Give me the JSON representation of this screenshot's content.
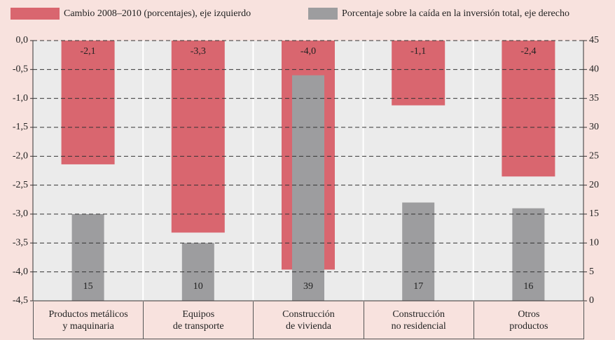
{
  "chart_data": {
    "type": "bar",
    "categories": [
      "Productos metálicos\ny maquinaria",
      "Equipos\nde transporte",
      "Construcción\nde vivienda",
      "Construcción\nno residencial",
      "Otros\nproductos"
    ],
    "series": [
      {
        "name": "Cambio 2008–2010 (porcentajes), eje izquierdo",
        "color": "#d9666f",
        "values": [
          -2.14,
          -3.32,
          -3.96,
          -1.12,
          -2.35
        ],
        "value_labels": [
          "-2,1",
          "-3,3",
          "-4,0",
          "-1,1",
          "-2,4"
        ]
      },
      {
        "name": "Porcentaje sobre la caída en la inversión total, eje derecho",
        "color": "#9d9d9f",
        "axis": "y2",
        "values": [
          15,
          10,
          39,
          17,
          16
        ]
      }
    ],
    "ylim": [
      -4.5,
      0
    ],
    "yticks": [
      {
        "value": 0,
        "label": "0,0"
      },
      {
        "value": -0.5,
        "label": "-0,5"
      },
      {
        "value": -1,
        "label": "-1,0"
      },
      {
        "value": -1.5,
        "label": "-1,5"
      },
      {
        "value": -2,
        "label": "-2,0"
      },
      {
        "value": -2.5,
        "label": "-2,5"
      },
      {
        "value": -3,
        "label": "-3,0"
      },
      {
        "value": -3.5,
        "label": "-3,5"
      },
      {
        "value": -4,
        "label": "-4,0"
      },
      {
        "value": -4.5,
        "label": "-4,5"
      }
    ],
    "y2lim": [
      0,
      45
    ],
    "y2ticks": [
      0,
      5,
      10,
      15,
      20,
      25,
      30,
      35,
      40,
      45
    ],
    "grid": true
  }
}
